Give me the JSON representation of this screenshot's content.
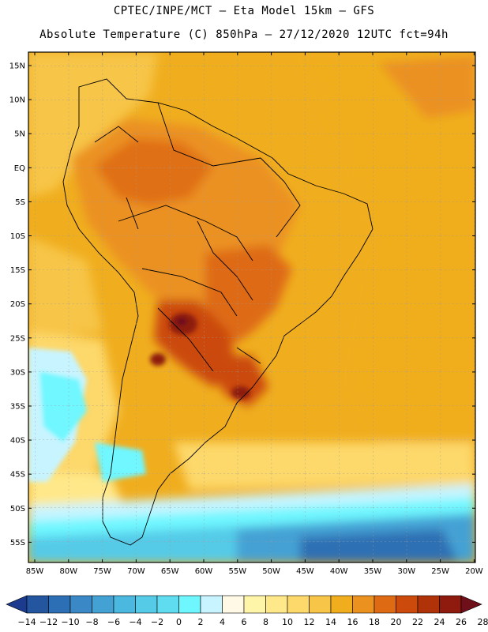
{
  "header": {
    "line1": "CPTEC/INPE/MCT –  Eta Model 15km – GFS",
    "line2": "Absolute Temperature (C) 850hPa – 27/12/2020 12UTC fct=94h"
  },
  "map": {
    "variable": "Absolute Temperature (C) 850hPa",
    "lat_ticks": [
      "15N",
      "10N",
      "5N",
      "EQ",
      "5S",
      "10S",
      "15S",
      "20S",
      "25S",
      "30S",
      "35S",
      "40S",
      "45S",
      "50S",
      "55S"
    ],
    "lon_ticks": [
      "85W",
      "80W",
      "75W",
      "70W",
      "65W",
      "60W",
      "55W",
      "50W",
      "45W",
      "40W",
      "35W",
      "30W",
      "25W",
      "20W"
    ],
    "lon_range": [
      -86,
      -20
    ],
    "lat_range": [
      -58,
      17
    ]
  },
  "colorbar": {
    "labels": [
      "-14",
      "-12",
      "-10",
      "-8",
      "-6",
      "-4",
      "-2",
      "0",
      "2",
      "4",
      "6",
      "8",
      "10",
      "12",
      "14",
      "16",
      "18",
      "20",
      "22",
      "24",
      "26",
      "28"
    ],
    "colors": [
      "#1c3a8e",
      "#2456a0",
      "#2d6fb4",
      "#3a89c6",
      "#44a1d4",
      "#4bb8e0",
      "#55cbe8",
      "#5fdcef",
      "#6ff7ff",
      "#c8f4ff",
      "#fff9e6",
      "#fff5a8",
      "#ffe88a",
      "#fdd86a",
      "#f7c547",
      "#f0ae1f",
      "#eb9120",
      "#de6a14",
      "#cb4a0c",
      "#b03208",
      "#8e1b0d",
      "#6e0f1a"
    ]
  }
}
